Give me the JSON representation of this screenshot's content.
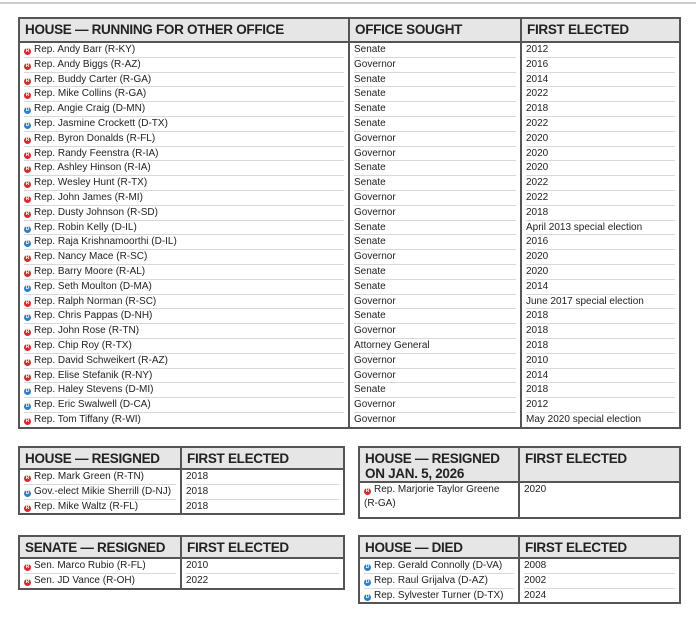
{
  "colors": {
    "republican": "#d9282f",
    "democrat": "#2a7fc7",
    "header_bg": "#e6e6e6"
  },
  "house_running": {
    "headers": [
      "HOUSE — RUNNING FOR OTHER OFFICE",
      "OFFICE SOUGHT",
      "FIRST ELECTED"
    ],
    "rows": [
      {
        "party": "R",
        "name": "Rep. Andy Barr (R-KY)",
        "office": "Senate",
        "elected": "2012"
      },
      {
        "party": "R",
        "name": "Rep. Andy Biggs (R-AZ)",
        "office": "Governor",
        "elected": "2016"
      },
      {
        "party": "R",
        "name": "Rep. Buddy Carter (R-GA)",
        "office": "Senate",
        "elected": "2014"
      },
      {
        "party": "R",
        "name": "Rep. Mike Collins (R-GA)",
        "office": "Senate",
        "elected": "2022"
      },
      {
        "party": "D",
        "name": "Rep. Angie Craig (D-MN)",
        "office": "Senate",
        "elected": "2018"
      },
      {
        "party": "D",
        "name": "Rep. Jasmine Crockett (D-TX)",
        "office": "Senate",
        "elected": "2022"
      },
      {
        "party": "R",
        "name": "Rep. Byron Donalds (R-FL)",
        "office": "Governor",
        "elected": "2020"
      },
      {
        "party": "R",
        "name": "Rep. Randy Feenstra (R-IA)",
        "office": "Governor",
        "elected": "2020"
      },
      {
        "party": "R",
        "name": "Rep. Ashley Hinson (R-IA)",
        "office": "Senate",
        "elected": "2020"
      },
      {
        "party": "R",
        "name": "Rep. Wesley Hunt (R-TX)",
        "office": "Senate",
        "elected": "2022"
      },
      {
        "party": "R",
        "name": "Rep. John James (R-MI)",
        "office": "Governor",
        "elected": "2022"
      },
      {
        "party": "R",
        "name": "Rep. Dusty Johnson (R-SD)",
        "office": "Governor",
        "elected": "2018"
      },
      {
        "party": "D",
        "name": "Rep. Robin Kelly (D-IL)",
        "office": "Senate",
        "elected": "April 2013 special election"
      },
      {
        "party": "D",
        "name": "Rep. Raja Krishnamoorthi (D-IL)",
        "office": "Senate",
        "elected": "2016"
      },
      {
        "party": "R",
        "name": "Rep. Nancy Mace (R-SC)",
        "office": "Governor",
        "elected": "2020"
      },
      {
        "party": "R",
        "name": "Rep. Barry Moore (R-AL)",
        "office": "Senate",
        "elected": "2020"
      },
      {
        "party": "D",
        "name": "Rep. Seth Moulton (D-MA)",
        "office": "Senate",
        "elected": "2014"
      },
      {
        "party": "R",
        "name": "Rep. Ralph Norman (R-SC)",
        "office": "Governor",
        "elected": "June 2017 special election"
      },
      {
        "party": "D",
        "name": "Rep. Chris Pappas (D-NH)",
        "office": "Senate",
        "elected": "2018"
      },
      {
        "party": "R",
        "name": "Rep. John Rose (R-TN)",
        "office": "Governor",
        "elected": "2018"
      },
      {
        "party": "R",
        "name": "Rep. Chip Roy (R-TX)",
        "office": "Attorney General",
        "elected": "2018"
      },
      {
        "party": "R",
        "name": "Rep. David Schweikert (R-AZ)",
        "office": "Governor",
        "elected": "2010"
      },
      {
        "party": "R",
        "name": "Rep. Elise Stefanik (R-NY)",
        "office": "Governor",
        "elected": "2014"
      },
      {
        "party": "D",
        "name": "Rep. Haley Stevens (D-MI)",
        "office": "Senate",
        "elected": "2018"
      },
      {
        "party": "D",
        "name": "Rep. Eric Swalwell (D-CA)",
        "office": "Governor",
        "elected": "2012"
      },
      {
        "party": "R",
        "name": "Rep. Tom Tiffany (R-WI)",
        "office": "Governor",
        "elected": "May 2020 special election"
      }
    ]
  },
  "house_resigned": {
    "headers": [
      "HOUSE — RESIGNED",
      "FIRST ELECTED"
    ],
    "rows": [
      {
        "party": "R",
        "name": "Rep. Mark Green (R-TN)",
        "elected": "2018"
      },
      {
        "party": "D",
        "name": "Gov.-elect Mikie Sherrill (D-NJ)",
        "elected": "2018"
      },
      {
        "party": "R",
        "name": "Rep. Mike Waltz (R-FL)",
        "elected": "2018"
      }
    ]
  },
  "senate_resigned": {
    "headers": [
      "SENATE — RESIGNED",
      "FIRST ELECTED"
    ],
    "rows": [
      {
        "party": "R",
        "name": "Sen. Marco Rubio (R-FL)",
        "elected": "2010"
      },
      {
        "party": "R",
        "name": "Sen. JD Vance (R-OH)",
        "elected": "2022"
      }
    ]
  },
  "house_resigned_jan": {
    "headers": [
      "HOUSE — RESIGNED ON JAN. 5, 2026",
      "FIRST ELECTED"
    ],
    "rows": [
      {
        "party": "R",
        "name": "Rep. Marjorie Taylor Greene (R-GA)",
        "elected": "2020"
      }
    ]
  },
  "house_died": {
    "headers": [
      "HOUSE — DIED",
      "FIRST ELECTED"
    ],
    "rows": [
      {
        "party": "D",
        "name": "Rep. Gerald Connolly (D-VA)",
        "elected": "2008"
      },
      {
        "party": "D",
        "name": "Rep. Raul Grijalva (D-AZ)",
        "elected": "2002"
      },
      {
        "party": "D",
        "name": "Rep. Sylvester Turner (D-TX)",
        "elected": "2024"
      }
    ]
  }
}
